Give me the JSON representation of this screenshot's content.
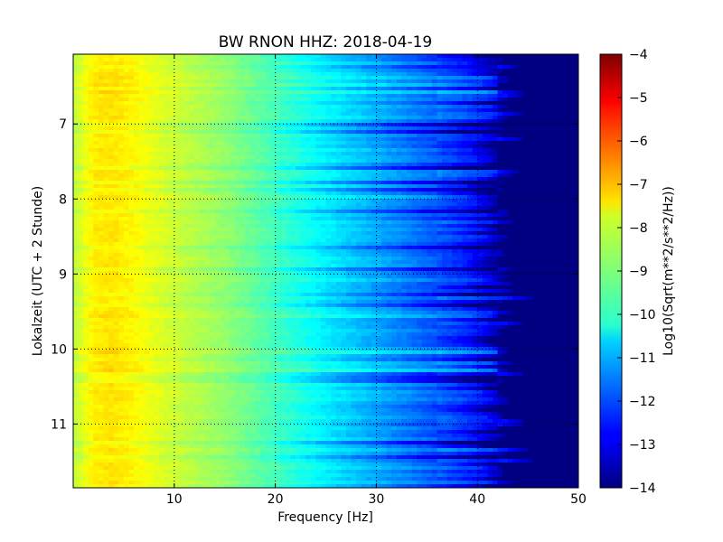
{
  "chart_data": {
    "type": "heatmap",
    "title": "BW RNON HHZ: 2018-04-19",
    "xlabel": "Frequency [Hz]",
    "ylabel": "Lokalzeit (UTC + 2 Stunde)",
    "colorbar_label": "Log10(Sqrt(m**2/s**2/Hz))",
    "xlim": [
      0,
      50
    ],
    "ylim": [
      11.85,
      6.07
    ],
    "y_inverted": true,
    "x_ticks": [
      10,
      20,
      30,
      40,
      50
    ],
    "y_ticks": [
      7,
      8,
      9,
      10,
      11
    ],
    "x_tick_labels": [
      "10",
      "20",
      "30",
      "40",
      "50"
    ],
    "y_tick_labels": [
      "7",
      "8",
      "9",
      "10",
      "11"
    ],
    "color_range": [
      -14,
      -4
    ],
    "colorbar_ticks": [
      -4,
      -5,
      -6,
      -7,
      -8,
      -9,
      -10,
      -11,
      -12,
      -13,
      -14
    ],
    "colorbar_tick_labels": [
      "−4",
      "−5",
      "−6",
      "−7",
      "−8",
      "−9",
      "−10",
      "−11",
      "−12",
      "−13",
      "−14"
    ],
    "colormap": "jet",
    "grid": true,
    "grid_style": "dotted",
    "spectrum_profile": {
      "frequency_hz": [
        0,
        1,
        2,
        4,
        6,
        8,
        10,
        15,
        20,
        25,
        30,
        35,
        38,
        40,
        41,
        42,
        43,
        44,
        45,
        50
      ],
      "log10_amplitude": [
        -8.4,
        -8.0,
        -7.6,
        -7.5,
        -7.7,
        -8.0,
        -8.25,
        -8.8,
        -9.6,
        -10.4,
        -11.1,
        -11.8,
        -12.3,
        -12.7,
        -13.2,
        -13.7,
        -14,
        -14,
        -14,
        -14
      ]
    }
  }
}
